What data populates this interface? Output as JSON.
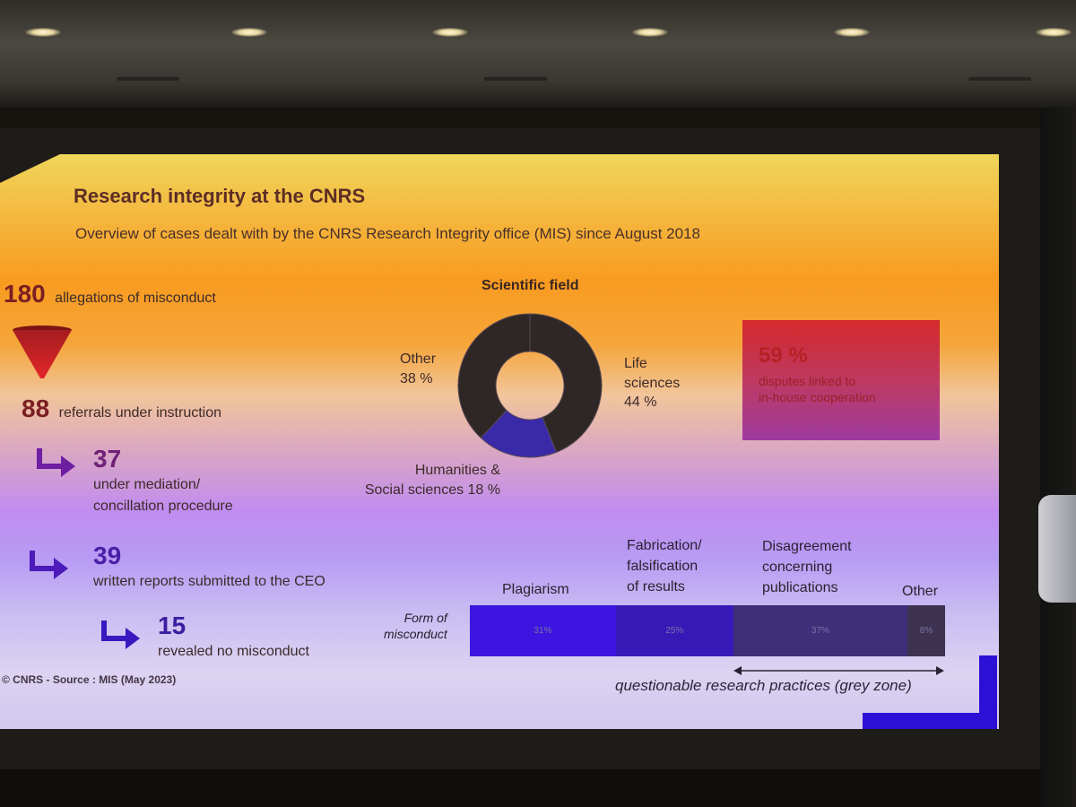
{
  "slide": {
    "title": "Research integrity at the CNRS",
    "subtitle": "Overview of cases dealt with by the CNRS Research Integrity office (MIS) since August 2018",
    "source": "© CNRS - Source : MIS (May 2023)"
  },
  "funnel": {
    "allegations": {
      "number": "180",
      "label": "allegations of misconduct"
    },
    "referrals": {
      "number": "88",
      "label": "referrals under instruction"
    },
    "mediation": {
      "number": "37",
      "label_line1": "under mediation/",
      "label_line2": "concillation procedure"
    },
    "reports": {
      "number": "39",
      "label": "written reports submitted to the CEO"
    },
    "no_misconduct": {
      "number": "15",
      "label": "revealed no misconduct"
    }
  },
  "scientific_field": {
    "title": "Scientific field",
    "other": {
      "line1": "Other",
      "line2": "38 %"
    },
    "life": {
      "line1": "Life",
      "line2": "sciences",
      "line3": "44 %"
    },
    "humanities": {
      "line1": "Humanities &",
      "line2": "Social sciences 18 %"
    }
  },
  "cooperation": {
    "percent": "59 %",
    "line1": "disputes linked to",
    "line2": "in-house cooperation"
  },
  "misconduct": {
    "row_label_line1": "Form of",
    "row_label_line2": "misconduct",
    "plagiarism": "Plagiarism",
    "fabrication_line1": "Fabrication/",
    "fabrication_line2": "falsification",
    "fabrication_line3": "of results",
    "disagreement_line1": "Disagreement",
    "disagreement_line2": "concerning",
    "disagreement_line3": "publications",
    "other": "Other",
    "grey_zone": "questionable research practices (grey zone)"
  },
  "chart_data": [
    {
      "type": "pie",
      "title": "Scientific field",
      "categories": [
        "Life sciences",
        "Humanities & Social sciences",
        "Other"
      ],
      "values": [
        44,
        18,
        38
      ],
      "colors": [
        "#2f2726",
        "#3a2aa8",
        "#2f2726"
      ]
    },
    {
      "type": "bar",
      "title": "Form of misconduct",
      "categories": [
        "Plagiarism",
        "Fabrication/falsification of results",
        "Disagreement concerning publications",
        "Other"
      ],
      "values": [
        31,
        25,
        37,
        8
      ],
      "value_labels": [
        "31%",
        "25%",
        "37%",
        "8%"
      ],
      "colors": [
        "#3c16e0",
        "#3719b8",
        "#3f2e78",
        "#3d3350"
      ]
    }
  ]
}
